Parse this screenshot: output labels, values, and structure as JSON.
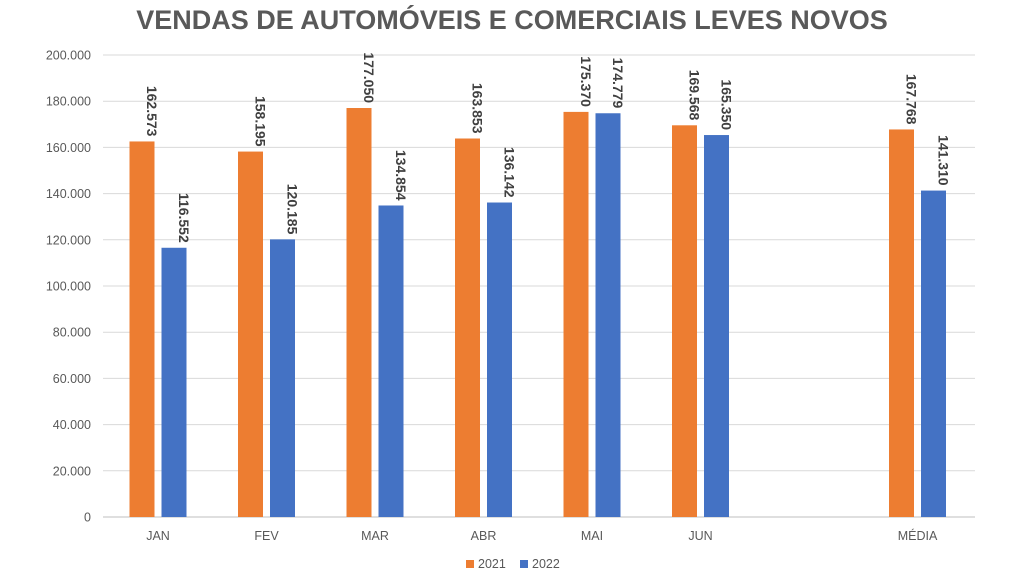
{
  "chart_data": {
    "type": "bar",
    "title": "VENDAS DE AUTOMÓVEIS E COMERCIAIS LEVES NOVOS",
    "xlabel": "",
    "ylabel": "",
    "ylim": [
      0,
      200000
    ],
    "yticks": [
      0,
      20000,
      40000,
      60000,
      80000,
      100000,
      120000,
      140000,
      160000,
      180000,
      200000
    ],
    "ytick_labels": [
      "0",
      "20.000",
      "40.000",
      "60.000",
      "80.000",
      "100.000",
      "120.000",
      "140.000",
      "160.000",
      "180.000",
      "200.000"
    ],
    "categories": [
      "JAN",
      "FEV",
      "MAR",
      "ABR",
      "MAI",
      "JUN",
      "",
      "MÉDIA"
    ],
    "series": [
      {
        "name": "2021",
        "color": "#ED7D31",
        "values": [
          162573,
          158195,
          177050,
          163853,
          175370,
          169568,
          null,
          167768
        ],
        "labels": [
          "162.573",
          "158.195",
          "177.050",
          "163.853",
          "175.370",
          "169.568",
          "",
          "167.768"
        ]
      },
      {
        "name": "2022",
        "color": "#4472C4",
        "values": [
          116552,
          120185,
          134854,
          136142,
          174779,
          165350,
          null,
          141310
        ],
        "labels": [
          "116.552",
          "120.185",
          "134.854",
          "136.142",
          "174.779",
          "165.350",
          "",
          "141.310"
        ]
      }
    ],
    "grid": true,
    "legend_position": "bottom"
  }
}
